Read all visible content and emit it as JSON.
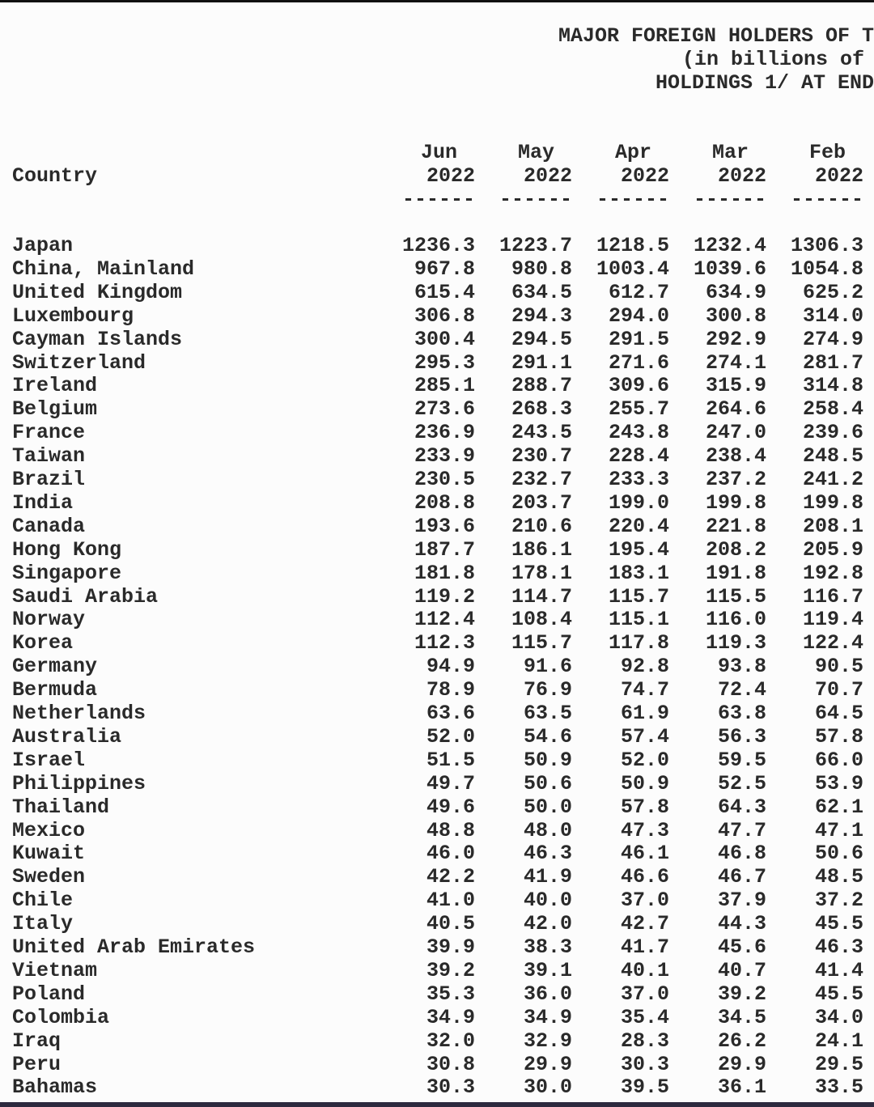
{
  "header": {
    "lines": [
      "MAJOR FOREIGN HOLDERS OF T",
      "(in billions of",
      "HOLDINGS 1/ AT END"
    ]
  },
  "table": {
    "country_header": "Country",
    "columns": [
      {
        "month": "Jun",
        "year": "2022",
        "rule": "------"
      },
      {
        "month": "May",
        "year": "2022",
        "rule": "------"
      },
      {
        "month": "Apr",
        "year": "2022",
        "rule": "------"
      },
      {
        "month": "Mar",
        "year": "2022",
        "rule": "------"
      },
      {
        "month": "Feb",
        "year": "2022",
        "rule": "------"
      }
    ],
    "rows": [
      [
        "Japan",
        "1236.3",
        "1223.7",
        "1218.5",
        "1232.4",
        "1306.3"
      ],
      [
        "China, Mainland",
        "967.8",
        "980.8",
        "1003.4",
        "1039.6",
        "1054.8"
      ],
      [
        "United Kingdom",
        "615.4",
        "634.5",
        "612.7",
        "634.9",
        "625.2"
      ],
      [
        "Luxembourg",
        "306.8",
        "294.3",
        "294.0",
        "300.8",
        "314.0"
      ],
      [
        "Cayman Islands",
        "300.4",
        "294.5",
        "291.5",
        "292.9",
        "274.9"
      ],
      [
        "Switzerland",
        "295.3",
        "291.1",
        "271.6",
        "274.1",
        "281.7"
      ],
      [
        "Ireland",
        "285.1",
        "288.7",
        "309.6",
        "315.9",
        "314.8"
      ],
      [
        "Belgium",
        "273.6",
        "268.3",
        "255.7",
        "264.6",
        "258.4"
      ],
      [
        "France",
        "236.9",
        "243.5",
        "243.8",
        "247.0",
        "239.6"
      ],
      [
        "Taiwan",
        "233.9",
        "230.7",
        "228.4",
        "238.4",
        "248.5"
      ],
      [
        "Brazil",
        "230.5",
        "232.7",
        "233.3",
        "237.2",
        "241.2"
      ],
      [
        "India",
        "208.8",
        "203.7",
        "199.0",
        "199.8",
        "199.8"
      ],
      [
        "Canada",
        "193.6",
        "210.6",
        "220.4",
        "221.8",
        "208.1"
      ],
      [
        "Hong Kong",
        "187.7",
        "186.1",
        "195.4",
        "208.2",
        "205.9"
      ],
      [
        "Singapore",
        "181.8",
        "178.1",
        "183.1",
        "191.8",
        "192.8"
      ],
      [
        "Saudi Arabia",
        "119.2",
        "114.7",
        "115.7",
        "115.5",
        "116.7"
      ],
      [
        "Norway",
        "112.4",
        "108.4",
        "115.1",
        "116.0",
        "119.4"
      ],
      [
        "Korea",
        "112.3",
        "115.7",
        "117.8",
        "119.3",
        "122.4"
      ],
      [
        "Germany",
        "94.9",
        "91.6",
        "92.8",
        "93.8",
        "90.5"
      ],
      [
        "Bermuda",
        "78.9",
        "76.9",
        "74.7",
        "72.4",
        "70.7"
      ],
      [
        "Netherlands",
        "63.6",
        "63.5",
        "61.9",
        "63.8",
        "64.5"
      ],
      [
        "Australia",
        "52.0",
        "54.6",
        "57.4",
        "56.3",
        "57.8"
      ],
      [
        "Israel",
        "51.5",
        "50.9",
        "52.0",
        "59.5",
        "66.0"
      ],
      [
        "Philippines",
        "49.7",
        "50.6",
        "50.9",
        "52.5",
        "53.9"
      ],
      [
        "Thailand",
        "49.6",
        "50.0",
        "57.8",
        "64.3",
        "62.1"
      ],
      [
        "Mexico",
        "48.8",
        "48.0",
        "47.3",
        "47.7",
        "47.1"
      ],
      [
        "Kuwait",
        "46.0",
        "46.3",
        "46.1",
        "46.8",
        "50.6"
      ],
      [
        "Sweden",
        "42.2",
        "41.9",
        "46.6",
        "46.7",
        "48.5"
      ],
      [
        "Chile",
        "41.0",
        "40.0",
        "37.0",
        "37.9",
        "37.2"
      ],
      [
        "Italy",
        "40.5",
        "42.0",
        "42.7",
        "44.3",
        "45.5"
      ],
      [
        "United Arab Emirates",
        "39.9",
        "38.3",
        "41.7",
        "45.6",
        "46.3"
      ],
      [
        "Vietnam",
        "39.2",
        "39.1",
        "40.1",
        "40.7",
        "41.4"
      ],
      [
        "Poland",
        "35.3",
        "36.0",
        "37.0",
        "39.2",
        "45.5"
      ],
      [
        "Colombia",
        "34.9",
        "34.9",
        "35.4",
        "34.5",
        "34.0"
      ],
      [
        "Iraq",
        "32.0",
        "32.9",
        "28.3",
        "26.2",
        "24.1"
      ],
      [
        "Peru",
        "30.8",
        "29.9",
        "30.3",
        "29.9",
        "29.5"
      ],
      [
        "Bahamas",
        "30.3",
        "30.0",
        "39.5",
        "36.1",
        "33.5"
      ]
    ]
  }
}
